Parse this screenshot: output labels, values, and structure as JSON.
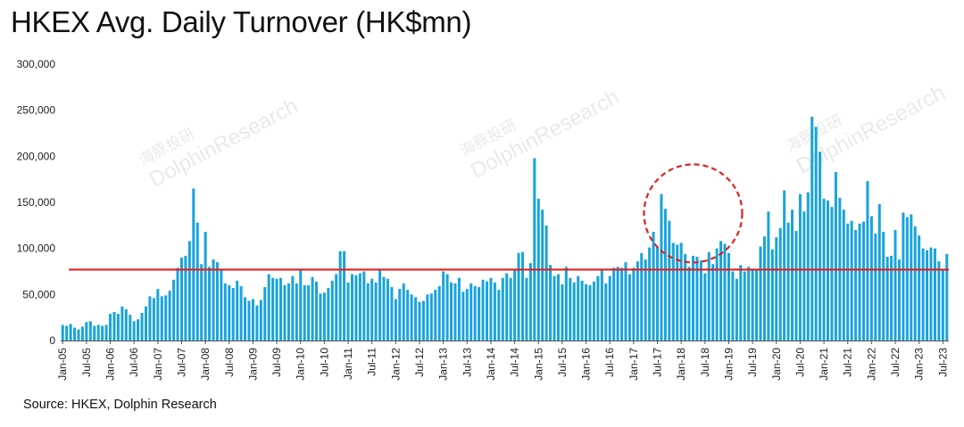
{
  "title": "HKEX Avg. Daily Turnover (HK$mn)",
  "source": "Source: HKEX, Dolphin Research",
  "watermark": {
    "cn": "海豚投研",
    "en": "DolphinResearch"
  },
  "colors": {
    "bar": "#1aa3dc",
    "reference_line": "#e02020",
    "highlight_circle": "#e02020",
    "axis": "#555555"
  },
  "chart_data": {
    "type": "bar",
    "title": "HKEX Avg. Daily Turnover (HK$mn)",
    "xlabel": "",
    "ylabel": "",
    "ylim": [
      0,
      300000
    ],
    "y_ticks": [
      "0",
      "50,000",
      "100,000",
      "150,000",
      "200,000",
      "250,000",
      "300,000"
    ],
    "x_tick_labels": [
      "Jan-05",
      "Jul-05",
      "Jan-06",
      "Jul-06",
      "Jan-07",
      "Jul-07",
      "Jan-08",
      "Jul-08",
      "Jan-09",
      "Jul-09",
      "Jan-10",
      "Jul-10",
      "Jan-11",
      "Jul-11",
      "Jan-12",
      "Jul-12",
      "Jan-13",
      "Jul-13",
      "Jan-14",
      "Jul-14",
      "Jan-15",
      "Jul-15",
      "Jan-16",
      "Jul-16",
      "Jan-17",
      "Jul-17",
      "Jan-18",
      "Jul-18",
      "Jan-19",
      "Jul-19",
      "Jan-20",
      "Jul-20",
      "Jan-21",
      "Jul-21",
      "Jan-22",
      "Jul-22",
      "Jan-23",
      "Jul-23"
    ],
    "x_start": "Jan-05",
    "x_interval": "monthly",
    "reference_line": 77000,
    "highlight": {
      "center_month": "Apr-18",
      "center_value": 138000
    },
    "grid": false,
    "values": [
      17000,
      16000,
      18000,
      14000,
      12000,
      15000,
      20000,
      21000,
      16000,
      17000,
      16000,
      17000,
      29000,
      31000,
      29000,
      37000,
      34000,
      28000,
      21000,
      23000,
      30000,
      37000,
      48000,
      46000,
      56000,
      48000,
      49000,
      54000,
      66000,
      79000,
      90000,
      92000,
      108000,
      165000,
      128000,
      83000,
      118000,
      80000,
      88000,
      85000,
      76000,
      62000,
      60000,
      57000,
      65000,
      59000,
      47000,
      43000,
      45000,
      38000,
      44000,
      58000,
      72000,
      68000,
      67000,
      68000,
      60000,
      62000,
      70000,
      62000,
      77000,
      60000,
      60000,
      69000,
      64000,
      51000,
      52000,
      57000,
      65000,
      72000,
      97000,
      97000,
      63000,
      72000,
      71000,
      73000,
      75000,
      62000,
      67000,
      63000,
      77000,
      69000,
      67000,
      58000,
      45000,
      56000,
      62000,
      55000,
      50000,
      47000,
      42000,
      43000,
      50000,
      51000,
      55000,
      59000,
      75000,
      72000,
      63000,
      62000,
      68000,
      53000,
      56000,
      62000,
      59000,
      58000,
      66000,
      64000,
      68000,
      63000,
      55000,
      68000,
      73000,
      68000,
      77000,
      95000,
      96000,
      68000,
      84000,
      198000,
      154000,
      142000,
      125000,
      82000,
      70000,
      72000,
      61000,
      80000,
      68000,
      63000,
      70000,
      65000,
      61000,
      60000,
      64000,
      70000,
      76000,
      62000,
      70000,
      79000,
      80000,
      79000,
      85000,
      72000,
      79000,
      86000,
      95000,
      88000,
      101000,
      118000,
      102000,
      159000,
      143000,
      130000,
      106000,
      104000,
      106000,
      94000,
      80000,
      92000,
      91000,
      87000,
      73000,
      96000,
      83000,
      100000,
      108000,
      105000,
      95000,
      75000,
      67000,
      82000,
      75000,
      80000,
      76000,
      76000,
      102000,
      113000,
      140000,
      99000,
      112000,
      122000,
      163000,
      128000,
      142000,
      119000,
      159000,
      140000,
      161000,
      243000,
      232000,
      205000,
      154000,
      152000,
      145000,
      183000,
      155000,
      142000,
      127000,
      130000,
      120000,
      127000,
      129000,
      173000,
      135000,
      116000,
      148000,
      118000,
      91000,
      92000,
      120000,
      88000,
      139000,
      134000,
      137000,
      124000,
      114000,
      100000,
      98000,
      101000,
      100000,
      86000,
      77000,
      94000
    ]
  }
}
